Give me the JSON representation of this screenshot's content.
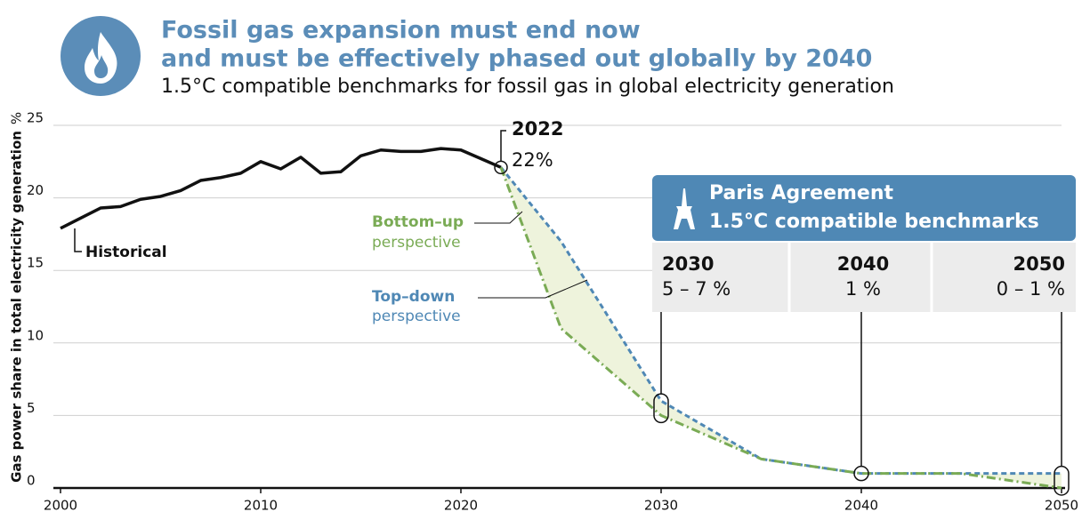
{
  "chart_data": {
    "type": "line",
    "title": [
      "Fossil gas expansion must end now",
      "and must be effectively phased out globally by 2040"
    ],
    "subtitle": "1.5°C compatible benchmarks for fossil gas in global electricity generation",
    "y_label": "Gas power share in total electricity generation",
    "y_unit": "%",
    "xlim": [
      2000,
      2050
    ],
    "xticks": [
      2000,
      2010,
      2020,
      2030,
      2040,
      2050
    ],
    "ylim": [
      0,
      25
    ],
    "yticks": [
      0,
      5,
      10,
      15,
      20,
      25
    ],
    "grid": true,
    "series": [
      {
        "name": "Historical",
        "color": "#111111",
        "x": [
          2000,
          2001,
          2002,
          2003,
          2004,
          2005,
          2006,
          2007,
          2008,
          2009,
          2010,
          2011,
          2012,
          2013,
          2014,
          2015,
          2016,
          2017,
          2018,
          2019,
          2020,
          2021,
          2022
        ],
        "values": [
          17.9,
          18.6,
          19.3,
          19.4,
          19.9,
          20.1,
          20.5,
          21.2,
          21.4,
          21.7,
          22.5,
          22.0,
          22.8,
          21.7,
          21.8,
          22.9,
          23.3,
          23.2,
          23.2,
          23.4,
          23.3,
          22.7,
          22.1
        ]
      },
      {
        "name": "Top–down",
        "color": "#4f88b5",
        "x": [
          2022,
          2025,
          2030,
          2035,
          2040,
          2045,
          2050
        ],
        "values": [
          22.1,
          17,
          6,
          2,
          1,
          1,
          1
        ]
      },
      {
        "name": "Bottom–up",
        "color": "#7aab55",
        "x": [
          2022,
          2025,
          2030,
          2035,
          2040,
          2045,
          2050
        ],
        "values": [
          22.1,
          11,
          5,
          2,
          1,
          1,
          0
        ]
      }
    ],
    "series_sublabel": "perspective",
    "last_point": {
      "year": "2022",
      "label": "22%"
    },
    "benchmarks": {
      "title": [
        "Paris Agreement",
        "1.5°C compatible benchmarks"
      ],
      "items": [
        {
          "year": "2030",
          "range": "5 – 7 %"
        },
        {
          "year": "2040",
          "range": "1 %"
        },
        {
          "year": "2050",
          "range": "0 – 1 %"
        }
      ]
    }
  }
}
